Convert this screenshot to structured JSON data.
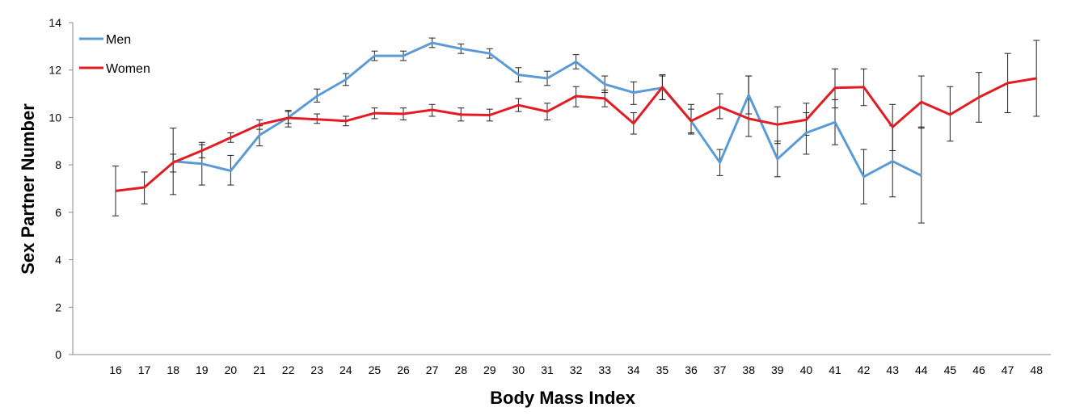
{
  "chart_data": {
    "type": "line",
    "title": "",
    "xlabel": "Body Mass Index",
    "ylabel": "Sex Partner Number",
    "ylim": [
      0,
      14
    ],
    "yticks": [
      0,
      2,
      4,
      6,
      8,
      10,
      12,
      14
    ],
    "x": [
      16,
      17,
      18,
      19,
      20,
      21,
      22,
      23,
      24,
      25,
      26,
      27,
      28,
      29,
      30,
      31,
      32,
      33,
      34,
      35,
      36,
      37,
      38,
      39,
      40,
      41,
      42,
      43,
      44,
      45,
      46,
      47,
      48
    ],
    "grid": false,
    "legend_position": "top-left",
    "series": [
      {
        "name": "Men",
        "color": "#5b9bd5",
        "values": [
          null,
          null,
          8.15,
          8.05,
          7.75,
          9.25,
          10.0,
          10.9,
          11.6,
          12.6,
          12.6,
          13.15,
          12.9,
          12.7,
          11.8,
          11.65,
          12.35,
          11.4,
          11.05,
          11.25,
          9.85,
          8.1,
          10.95,
          8.25,
          9.35,
          9.8,
          7.5,
          8.15,
          7.55,
          null,
          null,
          null,
          null
        ],
        "err_low": [
          null,
          null,
          7.7,
          7.15,
          7.15,
          8.8,
          9.75,
          10.65,
          11.35,
          12.4,
          12.4,
          12.95,
          12.7,
          12.5,
          11.5,
          11.35,
          12.05,
          11.05,
          10.55,
          10.75,
          9.35,
          7.55,
          10.15,
          7.5,
          8.45,
          8.85,
          6.35,
          6.65,
          5.55,
          null,
          null,
          null,
          null
        ],
        "err_high": [
          null,
          null,
          8.45,
          8.95,
          8.4,
          9.65,
          10.25,
          11.2,
          11.85,
          12.8,
          12.8,
          13.35,
          13.1,
          12.9,
          12.1,
          11.95,
          12.65,
          11.75,
          11.5,
          11.75,
          10.35,
          8.65,
          11.75,
          9.0,
          10.2,
          10.75,
          8.65,
          9.65,
          9.6,
          null,
          null,
          null,
          null
        ]
      },
      {
        "name": "Women",
        "color": "#e21c22",
        "values": [
          6.9,
          7.05,
          8.1,
          8.6,
          9.15,
          9.7,
          9.98,
          9.92,
          9.85,
          10.18,
          10.15,
          10.32,
          10.12,
          10.1,
          10.52,
          10.25,
          10.9,
          10.8,
          9.75,
          11.28,
          9.85,
          10.45,
          9.95,
          9.7,
          9.9,
          11.25,
          11.28,
          9.6,
          10.65,
          10.12,
          10.85,
          11.45,
          11.65
        ],
        "err_low": [
          5.85,
          6.35,
          6.75,
          8.3,
          8.95,
          9.5,
          9.6,
          9.75,
          9.65,
          9.95,
          9.9,
          10.05,
          9.85,
          9.85,
          10.25,
          9.9,
          10.45,
          10.45,
          9.3,
          10.75,
          9.3,
          9.95,
          9.2,
          8.9,
          9.25,
          10.4,
          10.5,
          8.6,
          9.55,
          9.0,
          9.8,
          10.2,
          10.05
        ],
        "err_high": [
          7.95,
          7.7,
          9.55,
          8.85,
          9.35,
          9.9,
          10.3,
          10.15,
          10.05,
          10.4,
          10.4,
          10.55,
          10.4,
          10.35,
          10.8,
          10.6,
          11.3,
          11.15,
          10.2,
          11.8,
          10.55,
          11.0,
          11.75,
          10.45,
          10.6,
          12.05,
          12.05,
          10.55,
          11.75,
          11.3,
          11.9,
          12.7,
          13.25
        ]
      }
    ]
  }
}
